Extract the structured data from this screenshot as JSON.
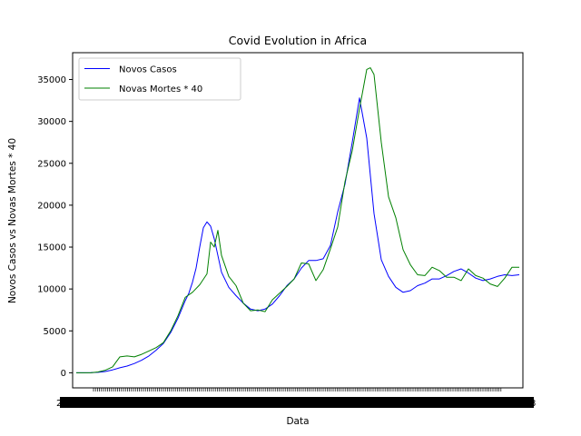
{
  "chart_data": {
    "type": "line",
    "title": "Covid Evolution in Africa",
    "xlabel": "Data",
    "ylabel": "Novos Casos vs Novas Mortes * 40",
    "ylim": [
      -1800,
      38200
    ],
    "yticks": [
      0,
      5000,
      10000,
      15000,
      20000,
      25000,
      30000,
      35000
    ],
    "grid": false,
    "legend": "top-left",
    "x_tick_labels": "overlapping, unreadable date labels",
    "series": [
      {
        "name": "Novos Casos",
        "color": "#0000ff",
        "x": [
          0,
          10,
          20,
          30,
          40,
          50,
          60,
          70,
          80,
          90,
          100,
          110,
          120,
          130,
          140,
          150,
          155,
          160,
          165,
          170,
          175,
          180,
          185,
          190,
          200,
          210,
          220,
          230,
          240,
          250,
          260,
          270,
          280,
          290,
          300,
          310,
          320,
          330,
          340,
          350,
          360,
          370,
          380,
          390,
          400,
          410,
          420,
          430,
          440,
          450,
          460,
          470,
          480,
          490,
          500,
          510,
          520,
          530,
          540,
          550,
          560,
          570,
          580,
          590,
          600,
          610
        ],
        "values": [
          0,
          0,
          10,
          50,
          150,
          350,
          600,
          800,
          1100,
          1500,
          2000,
          2700,
          3500,
          4800,
          6500,
          8600,
          9500,
          10800,
          12500,
          15000,
          17300,
          18000,
          17500,
          16000,
          12000,
          10200,
          9200,
          8300,
          7600,
          7400,
          7600,
          8200,
          9200,
          10400,
          11200,
          12500,
          13400,
          13400,
          13600,
          15200,
          19200,
          22500,
          27500,
          32800,
          28000,
          19000,
          13500,
          11500,
          10200,
          9600,
          9800,
          10400,
          10700,
          11200,
          11200,
          11600,
          12100,
          12400,
          11900,
          11300,
          11000,
          11200,
          11500,
          11700,
          11600,
          11700
        ]
      },
      {
        "name": "Novas Mortes * 40",
        "color": "#008000",
        "x": [
          0,
          10,
          20,
          30,
          40,
          50,
          60,
          70,
          80,
          90,
          100,
          110,
          120,
          130,
          140,
          150,
          160,
          170,
          180,
          185,
          190,
          195,
          200,
          210,
          220,
          230,
          240,
          250,
          260,
          270,
          280,
          290,
          300,
          310,
          320,
          330,
          340,
          350,
          360,
          370,
          380,
          390,
          400,
          405,
          410,
          420,
          430,
          440,
          450,
          460,
          470,
          480,
          490,
          500,
          510,
          520,
          530,
          540,
          550,
          560,
          570,
          580,
          590,
          600,
          610
        ],
        "values": [
          0,
          0,
          0,
          100,
          300,
          700,
          1900,
          2000,
          1900,
          2200,
          2600,
          3000,
          3600,
          5000,
          6800,
          9000,
          9600,
          10500,
          11800,
          15600,
          15000,
          17000,
          14000,
          11500,
          10400,
          8300,
          7400,
          7500,
          7300,
          8700,
          9500,
          10300,
          11200,
          13100,
          13000,
          11000,
          12300,
          14800,
          17400,
          22800,
          26500,
          31500,
          36200,
          36400,
          35600,
          27500,
          21000,
          18500,
          14700,
          12900,
          11700,
          11600,
          12600,
          12200,
          11400,
          11400,
          11000,
          12400,
          11600,
          11300,
          10600,
          10300,
          11300,
          12600,
          12600
        ]
      }
    ]
  }
}
